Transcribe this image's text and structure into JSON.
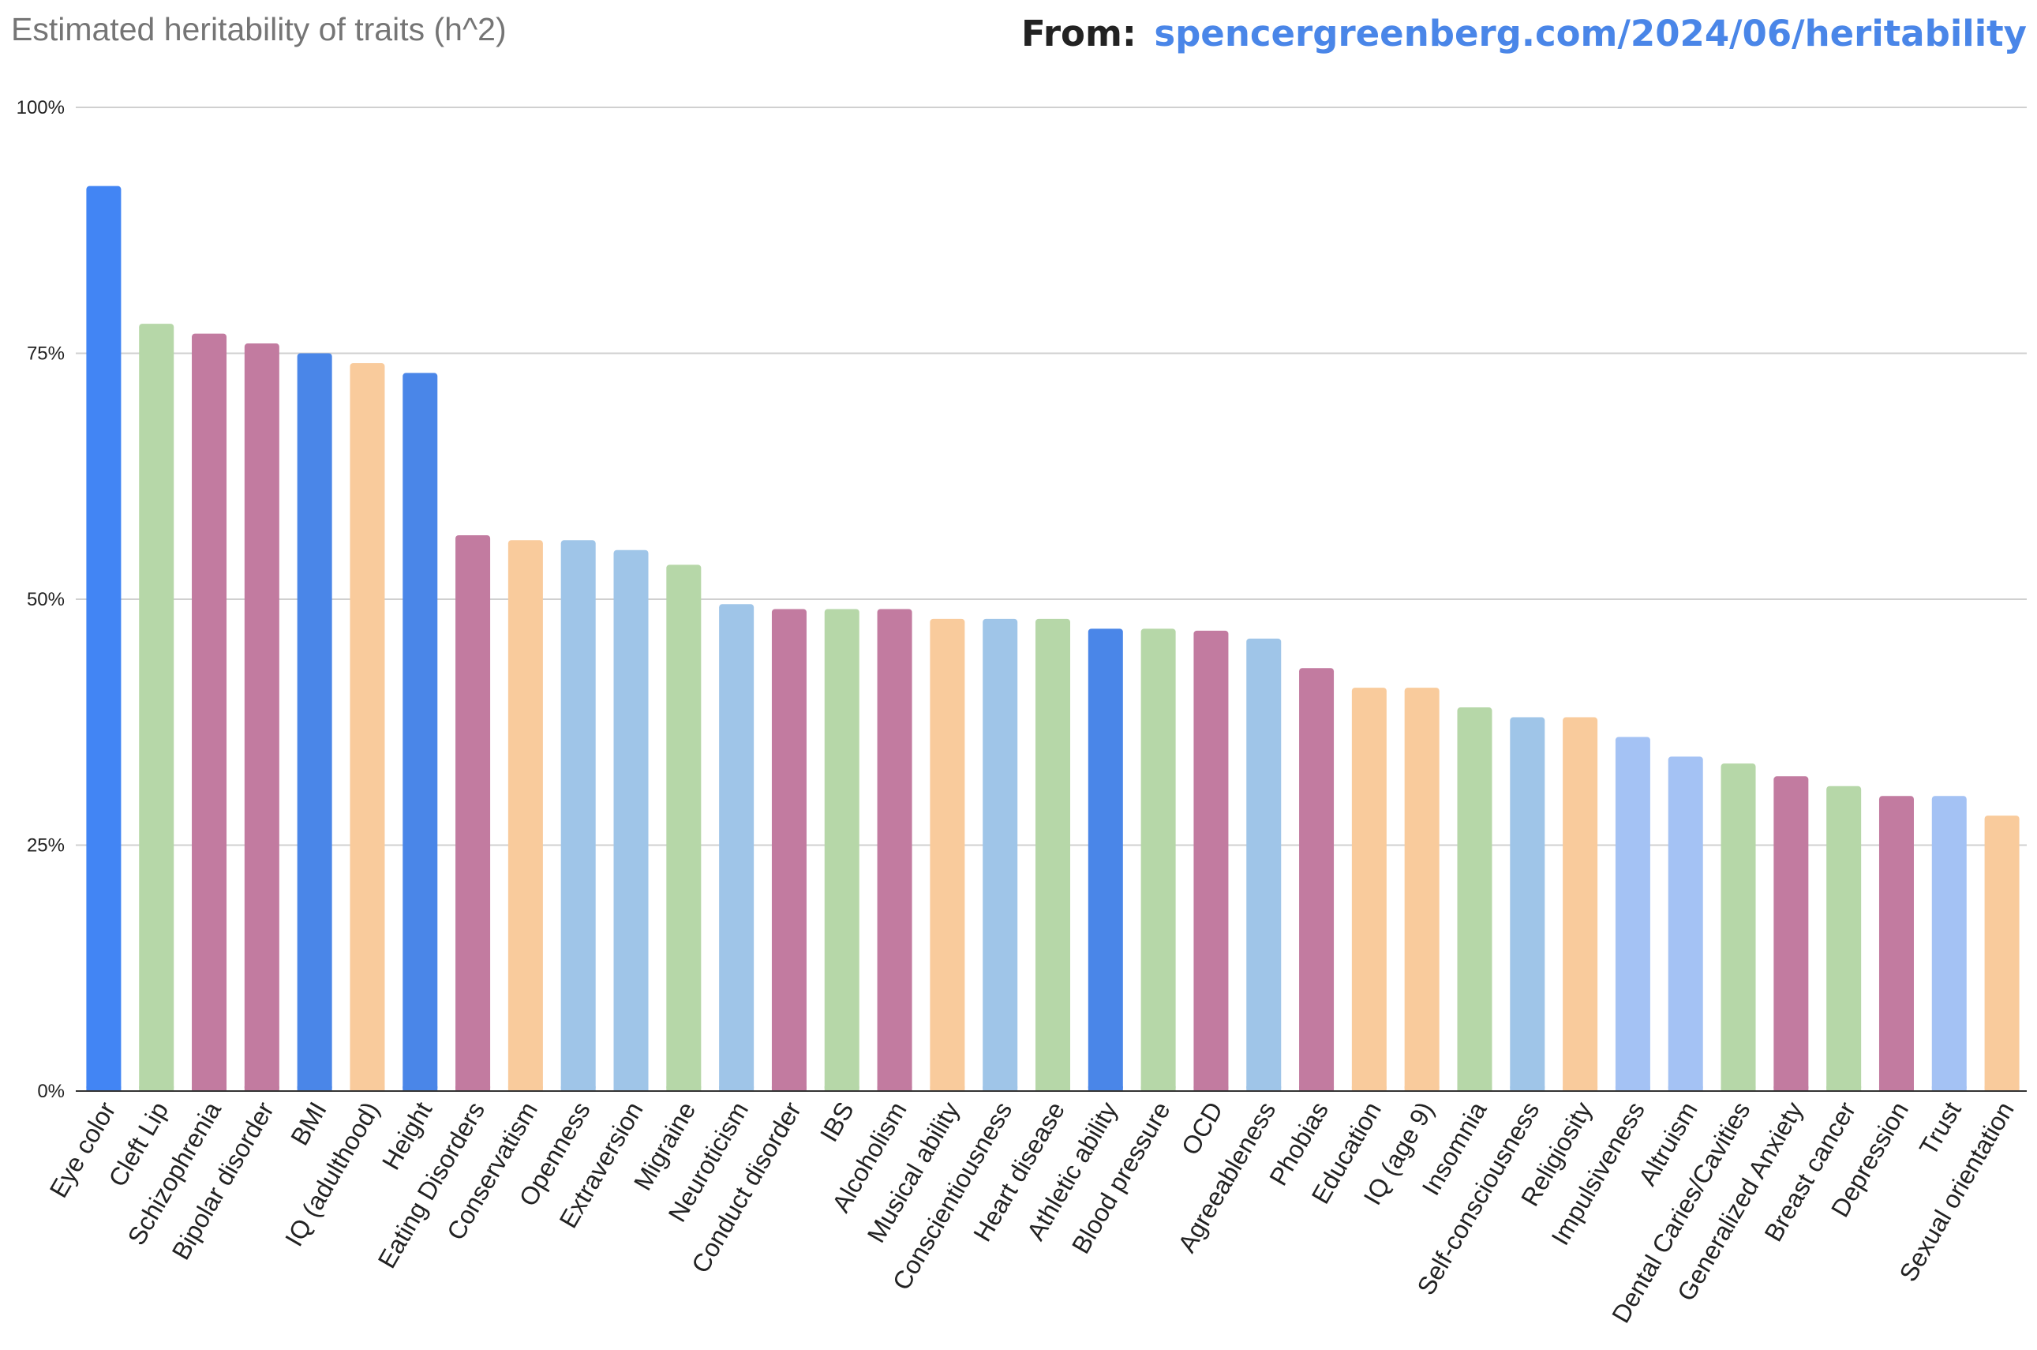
{
  "header": {
    "from_label": "From:",
    "source_url": "spencergreenberg.com/2024/06/heritability"
  },
  "colors": {
    "title": "#757575",
    "link": "#4a86e8",
    "grid": "#d0d0d0",
    "axis": "#333333",
    "from_label": "#222222"
  },
  "chart_data": {
    "type": "bar",
    "title": "Estimated heritability of traits (h^2)",
    "xlabel": "",
    "ylabel": "",
    "ylim": [
      0,
      100
    ],
    "y_ticks": [
      0,
      25,
      50,
      75,
      100
    ],
    "y_tick_labels": [
      "0%",
      "25%",
      "50%",
      "75%",
      "100%"
    ],
    "grid": true,
    "legend": "none",
    "categories": [
      "Eye color",
      "Cleft Lip",
      "Schizophrenia",
      "Bipolar disorder",
      "BMI",
      "IQ (adulthood)",
      "Height",
      "Eating Disorders",
      "Conservatism",
      "Openness",
      "Extraversion",
      "Migraine",
      "Neuroticism",
      "Conduct disorder",
      "IBS",
      "Alcoholism",
      "Musical ability",
      "Conscientiousness",
      "Heart disease",
      "Athletic ability",
      "Blood pressure",
      "OCD",
      "Agreeableness",
      "Phobias",
      "Education",
      "IQ (age 9)",
      "Insomnia",
      "Self-consciousness",
      "Religiosity",
      "Impulsiveness",
      "Altruism",
      "Dental Caries/Cavities",
      "Generalized Anxiety",
      "Breast cancer",
      "Depression",
      "Trust",
      "Sexual orientation"
    ],
    "values": [
      92,
      78,
      77,
      76,
      75,
      74,
      73,
      56.5,
      56,
      56,
      55,
      53.5,
      49.5,
      49,
      49,
      49,
      48,
      48,
      48,
      47,
      47,
      46.8,
      46,
      43,
      41,
      41,
      39,
      38,
      38,
      36,
      34,
      33.3,
      32,
      31,
      30,
      30,
      28
    ],
    "bar_colors": [
      "#4285f4",
      "#b6d7a8",
      "#c27ba0",
      "#c27ba0",
      "#4a86e8",
      "#f9cb9c",
      "#4a86e8",
      "#c27ba0",
      "#f9cb9c",
      "#9fc5e8",
      "#9fc5e8",
      "#b6d7a8",
      "#9fc5e8",
      "#c27ba0",
      "#b6d7a8",
      "#c27ba0",
      "#f9cb9c",
      "#9fc5e8",
      "#b6d7a8",
      "#4a86e8",
      "#b6d7a8",
      "#c27ba0",
      "#9fc5e8",
      "#c27ba0",
      "#f9cb9c",
      "#f9cb9c",
      "#b6d7a8",
      "#9fc5e8",
      "#f9cb9c",
      "#a4c2f4",
      "#a4c2f4",
      "#b6d7a8",
      "#c27ba0",
      "#b6d7a8",
      "#c27ba0",
      "#a4c2f4",
      "#f9cb9c"
    ]
  }
}
